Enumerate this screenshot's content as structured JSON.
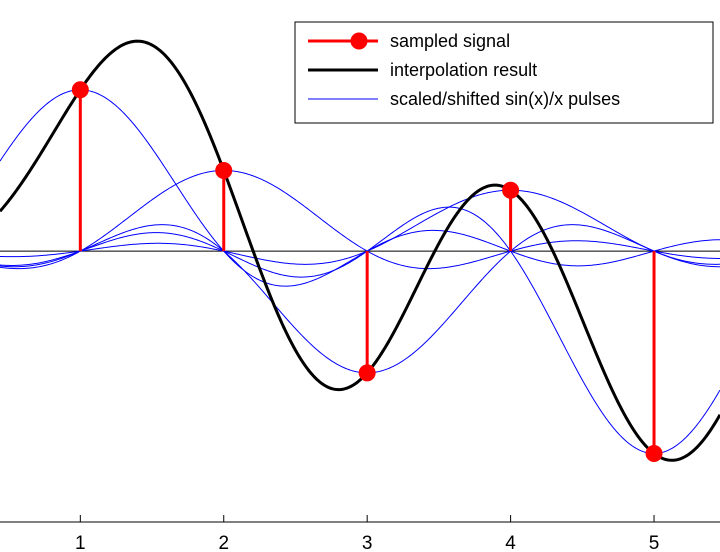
{
  "chart_data": {
    "type": "line",
    "title": "",
    "xlabel": "",
    "ylabel": "",
    "xlim": [
      0.44,
      5.46
    ],
    "ylim": [
      -1.78,
      1.65
    ],
    "x_ticks": [
      1,
      2,
      3,
      4,
      5
    ],
    "x_tick_labels": [
      "1",
      "2",
      "3",
      "4",
      "5"
    ],
    "grid": false,
    "legend_position": "top-right",
    "samples": {
      "x": [
        1,
        2,
        3,
        4,
        5
      ],
      "y": [
        1.06,
        0.53,
        -0.8,
        0.4,
        -1.33
      ]
    },
    "series": [
      {
        "name": "sampled signal",
        "kind": "stem",
        "color": "#ff0000"
      },
      {
        "name": "interpolation result",
        "kind": "sinc-sum",
        "color": "#000000"
      },
      {
        "name": "scaled/shifted sin(x)/x pulses",
        "kind": "sinc-pulses",
        "color": "#0000ff"
      }
    ],
    "baseline": {
      "y": 0,
      "color": "#000000"
    }
  },
  "legend": {
    "items": [
      {
        "label": "sampled signal"
      },
      {
        "label": "interpolation result"
      },
      {
        "label": "scaled/shifted sin(x)/x pulses"
      }
    ]
  },
  "colors": {
    "samples": "#ff0000",
    "interpolation": "#000000",
    "pulses": "#0000ff",
    "axes": "#000000"
  }
}
